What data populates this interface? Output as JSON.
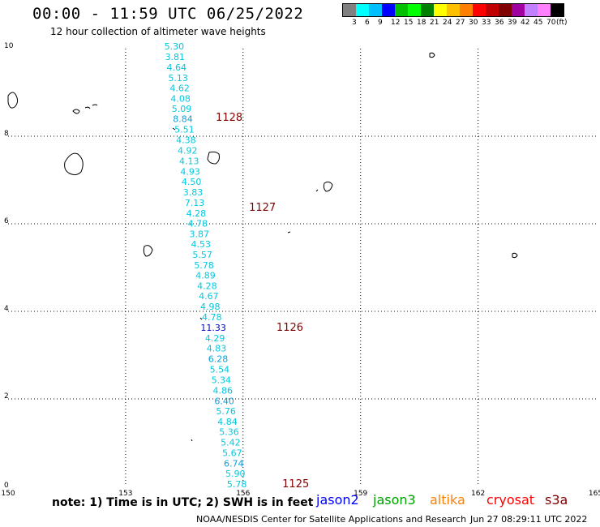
{
  "header": {
    "title": "00:00 - 11:59 UTC 06/25/2022",
    "subtitle": "12 hour collection of altimeter wave heights"
  },
  "legend": {
    "colors": [
      "#808080",
      "#00ffff",
      "#00bfff",
      "#0000ff",
      "#00c000",
      "#00ff00",
      "#008000",
      "#ffff00",
      "#ffc000",
      "#ff8000",
      "#ff0000",
      "#c00000",
      "#800000",
      "#a000a0",
      "#c080ff",
      "#ff80ff",
      "#000000"
    ],
    "labels": [
      "3",
      "6",
      "9",
      "12",
      "15",
      "18",
      "21",
      "24",
      "27",
      "30",
      "33",
      "36",
      "39",
      "42",
      "45",
      "70",
      "(ft)"
    ]
  },
  "axes": {
    "x_ticks": [
      "150",
      "153",
      "156",
      "159",
      "162",
      "165"
    ],
    "y_ticks": [
      "0",
      "2",
      "4",
      "6",
      "8",
      "10"
    ]
  },
  "track": [
    {
      "lon": 157.14,
      "lat": 9.77,
      "value": "5.30",
      "color": "#00c8e0"
    },
    {
      "lon": 157.16,
      "lat": 9.45,
      "value": "3.81",
      "color": "#00c8e0"
    },
    {
      "lon": 157.2,
      "lat": 9.13,
      "value": "4.64",
      "color": "#00c8e0"
    },
    {
      "lon": 157.24,
      "lat": 8.81,
      "value": "5.13",
      "color": "#00c8e0"
    },
    {
      "lon": 157.28,
      "lat": 8.5,
      "value": "4.62",
      "color": "#00c8e0"
    },
    {
      "lon": 157.3,
      "lat": 8.18,
      "value": "4.08",
      "color": "#00c8e0"
    },
    {
      "lon": 157.33,
      "lat": 7.87,
      "value": "5.09",
      "color": "#00c8e0"
    },
    {
      "lon": 157.36,
      "lat": 7.56,
      "value": "8.84",
      "color": "#0aa0d8"
    },
    {
      "lon": 157.4,
      "lat": 7.24,
      "value": "5.51",
      "color": "#00c8e0"
    },
    {
      "lon": 157.44,
      "lat": 6.92,
      "value": "4.38",
      "color": "#00c8e0"
    },
    {
      "lon": 157.48,
      "lat": 6.6,
      "value": "4.92",
      "color": "#00c8e0"
    },
    {
      "lon": 157.52,
      "lat": 6.28,
      "value": "4.13",
      "color": "#00c8e0"
    },
    {
      "lon": 157.55,
      "lat": 5.97,
      "value": "4.93",
      "color": "#00c8e0"
    },
    {
      "lon": 157.58,
      "lat": 5.66,
      "value": "4.50",
      "color": "#00c8e0"
    },
    {
      "lon": 157.62,
      "lat": 5.34,
      "value": "3.83",
      "color": "#00c8e0"
    },
    {
      "lon": 157.66,
      "lat": 5.02,
      "value": "7.13",
      "color": "#00c8e0"
    },
    {
      "lon": 157.7,
      "lat": 4.7,
      "value": "4.28",
      "color": "#00c8e0"
    },
    {
      "lon": 157.74,
      "lat": 4.39,
      "value": "4.78",
      "color": "#00c8e0"
    },
    {
      "lon": 157.78,
      "lat": 4.07,
      "value": "3.87",
      "color": "#00c8e0"
    },
    {
      "lon": 157.82,
      "lat": 3.76,
      "value": "4.53",
      "color": "#00c8e0"
    },
    {
      "lon": 157.86,
      "lat": 3.44,
      "value": "5.57",
      "color": "#00c8e0"
    },
    {
      "lon": 157.9,
      "lat": 3.12,
      "value": "5.78",
      "color": "#00c8e0"
    },
    {
      "lon": 157.94,
      "lat": 2.81,
      "value": "4.89",
      "color": "#00c8e0"
    },
    {
      "lon": 157.98,
      "lat": 2.49,
      "value": "4.28",
      "color": "#00c8e0"
    },
    {
      "lon": 158.02,
      "lat": 2.18,
      "value": "4.67",
      "color": "#00c8e0"
    },
    {
      "lon": 158.06,
      "lat": 1.86,
      "value": "4.98",
      "color": "#00c8e0"
    },
    {
      "lon": 158.1,
      "lat": 1.54,
      "value": "4.78",
      "color": "#00c8e0"
    },
    {
      "lon": 158.14,
      "lat": 1.22,
      "value": "11.33",
      "color": "#0000c8"
    },
    {
      "lon": 158.18,
      "lat": 0.9,
      "value": "4.29",
      "color": "#00c8e0"
    },
    {
      "lon": 158.22,
      "lat": 0.59,
      "value": "4.83",
      "color": "#00c8e0"
    },
    {
      "lon": 158.26,
      "lat": 0.27,
      "value": "6.28",
      "color": "#0aa0d8"
    },
    {
      "lon": 158.3,
      "lat": -0.05,
      "value": "5.54",
      "color": "#00c8e0"
    },
    {
      "lon": 158.34,
      "lat": -0.36,
      "value": "5.34",
      "color": "#00c8e0"
    },
    {
      "lon": 158.38,
      "lat": -0.68,
      "value": "4.86",
      "color": "#00c8e0"
    },
    {
      "lon": 158.42,
      "lat": -1.0,
      "value": "6.40",
      "color": "#0aa0d8"
    },
    {
      "lon": 158.46,
      "lat": -1.31,
      "value": "5.76",
      "color": "#00c8e0"
    },
    {
      "lon": 158.5,
      "lat": -1.63,
      "value": "4.84",
      "color": "#00c8e0"
    },
    {
      "lon": 158.54,
      "lat": -1.94,
      "value": "5.36",
      "color": "#00c8e0"
    },
    {
      "lon": 158.58,
      "lat": -2.26,
      "value": "5.42",
      "color": "#00c8e0"
    },
    {
      "lon": 158.62,
      "lat": -2.58,
      "value": "5.67",
      "color": "#00c8e0"
    },
    {
      "lon": 158.66,
      "lat": -2.9,
      "value": "6.74",
      "color": "#0aa0d8"
    },
    {
      "lon": 158.7,
      "lat": -3.21,
      "value": "5.90",
      "color": "#00c8e0"
    },
    {
      "lon": 158.74,
      "lat": -3.53,
      "value": "5.78",
      "color": "#00c8e0"
    }
  ],
  "pass_labels": [
    {
      "lon": 158.2,
      "lat": 7.6,
      "text": "1128"
    },
    {
      "lon": 159.05,
      "lat": 4.87,
      "text": "1127"
    },
    {
      "lon": 159.75,
      "lat": 1.22,
      "text": "1126"
    },
    {
      "lon": 159.9,
      "lat": -3.53,
      "text": "1125"
    }
  ],
  "footer": {
    "note": "note:  1) Time is in UTC;  2) SWH is in feet",
    "satellites": [
      {
        "name": "jason2",
        "color": "#0000ff"
      },
      {
        "name": "jason3",
        "color": "#00a000"
      },
      {
        "name": "altika",
        "color": "#ff8000"
      },
      {
        "name": "cryosat",
        "color": "#ff0000"
      },
      {
        "name": "s3a",
        "color": "#800000"
      }
    ],
    "credit": "NOAA/NESDIS Center for Satellite Applications and Research",
    "timestamp": "Jun 27 08:29:11 UTC 2022"
  }
}
